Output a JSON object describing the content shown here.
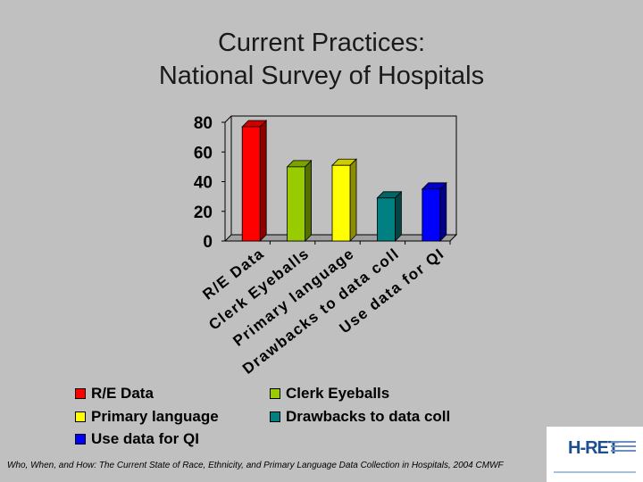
{
  "title": {
    "line1": "Current Practices:",
    "line2": "National Survey of Hospitals"
  },
  "chart_data": {
    "type": "bar",
    "categories": [
      "R/E Data",
      "Clerk Eyeballs",
      "Primary language",
      "Drawbacks to data coll",
      "Use data for QI"
    ],
    "values": [
      77,
      50,
      51,
      29,
      35
    ],
    "colors": [
      "#ff0000",
      "#99cc00",
      "#ffff00",
      "#008080",
      "#0000ff"
    ],
    "y_ticks": [
      "0",
      "20",
      "40",
      "60",
      "80"
    ],
    "ylim": [
      0,
      80
    ],
    "grid": false,
    "legend_position": "bottom"
  },
  "legend": [
    {
      "label": "R/E Data",
      "color": "#ff0000"
    },
    {
      "label": "Clerk Eyeballs",
      "color": "#99cc00"
    },
    {
      "label": "Primary language",
      "color": "#ffff00"
    },
    {
      "label": "Drawbacks to data coll",
      "color": "#008080"
    },
    {
      "label": "Use data for QI",
      "color": "#0000ff"
    }
  ],
  "footer": {
    "citation": "Who, When, and How: The Current State of Race, Ethnicity, and Primary Language Data Collection in Hospitals, 2004 CMWF"
  },
  "logo": {
    "icon": "hret-logo-icon",
    "mark": "H-RET"
  }
}
